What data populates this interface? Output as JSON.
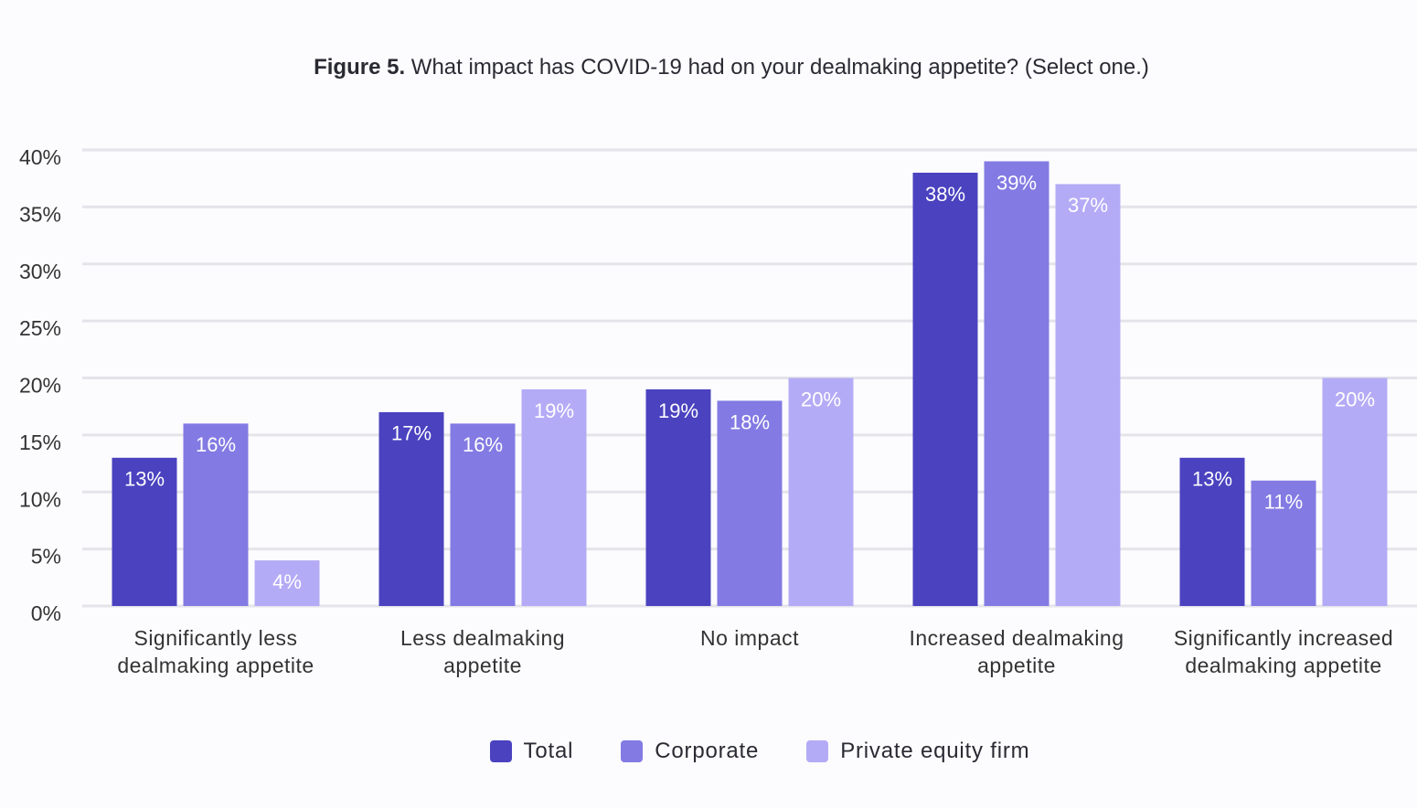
{
  "chart_data": {
    "type": "bar",
    "title_prefix": "Figure 5.",
    "title": "What impact has COVID-19 had on your dealmaking appetite? (Select one.)",
    "categories": [
      "Significantly less dealmaking appetite",
      "Less dealmaking appetite",
      "No impact",
      "Increased dealmaking appetite",
      "Significantly increased dealmaking appetite"
    ],
    "series": [
      {
        "name": "Total",
        "color": "#4a42bf",
        "values": [
          13,
          17,
          19,
          38,
          13
        ],
        "value_labels": [
          "13%",
          "17%",
          "19%",
          "38%",
          "13%"
        ]
      },
      {
        "name": "Corporate",
        "color": "#837ae3",
        "values": [
          16,
          16,
          18,
          39,
          11
        ],
        "value_labels": [
          "16%",
          "16%",
          "18%",
          "39%",
          "11%"
        ]
      },
      {
        "name": "Private equity firm",
        "color": "#b4abf6",
        "values": [
          4,
          19,
          20,
          37,
          20
        ],
        "value_labels": [
          "4%",
          "19%",
          "20%",
          "37%",
          "20%"
        ]
      }
    ],
    "ylim": [
      0,
      40
    ],
    "yticks": [
      {
        "value": 0,
        "label": "0%"
      },
      {
        "value": 5,
        "label": "5%"
      },
      {
        "value": 10,
        "label": "10%"
      },
      {
        "value": 15,
        "label": "15%"
      },
      {
        "value": 20,
        "label": "20%"
      },
      {
        "value": 25,
        "label": "25%"
      },
      {
        "value": 30,
        "label": "30%"
      },
      {
        "value": 35,
        "label": "35%"
      },
      {
        "value": 40,
        "label": "40%"
      }
    ],
    "grid": true
  }
}
